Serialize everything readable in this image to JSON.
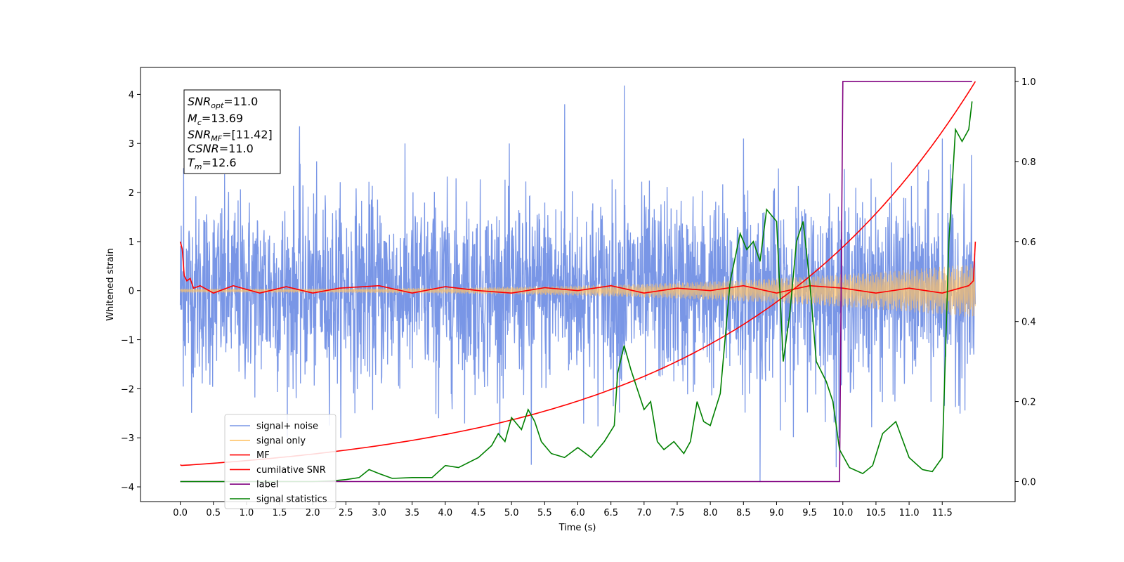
{
  "chart_data": {
    "type": "line",
    "xlabel": "Time (s)",
    "ylabel": "Whitened strain",
    "xlim": [
      -0.6,
      12.6
    ],
    "ylim": [
      -4.3,
      4.55
    ],
    "y2lim": [
      -0.05,
      1.035
    ],
    "xticks": [
      0.0,
      0.5,
      1.0,
      1.5,
      2.0,
      2.5,
      3.0,
      3.5,
      4.0,
      4.5,
      5.0,
      5.5,
      6.0,
      6.5,
      7.0,
      7.5,
      8.0,
      8.5,
      9.0,
      9.5,
      10.0,
      10.5,
      11.0,
      11.5
    ],
    "xtick_labels": [
      "0.0",
      "0.5",
      "1.0",
      "1.5",
      "2.0",
      "2.5",
      "3.0",
      "3.5",
      "4.0",
      "4.5",
      "5.0",
      "5.5",
      "6.0",
      "6.5",
      "7.0",
      "7.5",
      "8.0",
      "8.5",
      "9.0",
      "9.5",
      "10.0",
      "10.5",
      "11.0",
      "11.5"
    ],
    "yticks": [
      -4,
      -3,
      -2,
      -1,
      0,
      1,
      2,
      3,
      4
    ],
    "ytick_labels": [
      "−4",
      "−3",
      "−2",
      "−1",
      "0",
      "1",
      "2",
      "3",
      "4"
    ],
    "y2ticks": [
      0.0,
      0.2,
      0.4,
      0.6,
      0.8,
      1.0
    ],
    "y2tick_labels": [
      "0.0",
      "0.2",
      "0.4",
      "0.6",
      "0.8",
      "1.0"
    ],
    "info_box": {
      "line1": {
        "sym": "SNR",
        "sub": "opt",
        "val": "=11.0"
      },
      "line2": {
        "sym": "M",
        "sub": "c",
        "val": "=13.69"
      },
      "line3": {
        "sym": "SNR",
        "sub": "MF",
        "val": "=[11.42]"
      },
      "line4": {
        "sym": "CSNR",
        "sub": "",
        "val": "=11.0"
      },
      "line5": {
        "sym": "T",
        "sub": "m",
        "val": "=12.6"
      }
    },
    "legend": {
      "placement": "lower-left",
      "entries": [
        {
          "label": "signal+ noise",
          "color": "#7996e6"
        },
        {
          "label": "signal only",
          "color": "#ffc266"
        },
        {
          "label": "MF",
          "color": "#ff0000"
        },
        {
          "label": "cumilative SNR",
          "color": "#ff0000"
        },
        {
          "label": "label",
          "color": "#800080"
        },
        {
          "label": "signal statistics",
          "color": "#008000"
        }
      ]
    },
    "series": [
      {
        "name": "signal+ noise",
        "axis": "left",
        "color": "#7996e6",
        "style": "noise",
        "x_range": [
          0.0,
          12.0
        ],
        "std": 0.95,
        "spikes": [
          {
            "x": 0.05,
            "y": 2.5
          },
          {
            "x": 1.8,
            "y": 3.35
          },
          {
            "x": 3.9,
            "y": -2.6
          },
          {
            "x": 5.3,
            "y": -3.55
          },
          {
            "x": 5.8,
            "y": 3.8
          },
          {
            "x": 6.7,
            "y": 4.18
          },
          {
            "x": 8.75,
            "y": -3.9
          },
          {
            "x": 8.5,
            "y": 3.1
          },
          {
            "x": 9.9,
            "y": -3.6
          },
          {
            "x": 11.5,
            "y": 3.1
          }
        ]
      },
      {
        "name": "signal only",
        "axis": "left",
        "color": "#ffc266",
        "style": "chirp",
        "x_range": [
          0.0,
          12.0
        ],
        "amplitude_start": 0.04,
        "amplitude_end": 0.55
      },
      {
        "name": "MF",
        "axis": "left",
        "color": "#ff0000",
        "points": [
          [
            0.0,
            1.0
          ],
          [
            0.03,
            0.85
          ],
          [
            0.06,
            0.3
          ],
          [
            0.1,
            0.2
          ],
          [
            0.15,
            0.25
          ],
          [
            0.2,
            0.05
          ],
          [
            0.3,
            0.1
          ],
          [
            0.5,
            -0.05
          ],
          [
            0.8,
            0.1
          ],
          [
            1.2,
            -0.05
          ],
          [
            1.6,
            0.08
          ],
          [
            2.0,
            -0.05
          ],
          [
            2.4,
            0.05
          ],
          [
            3.0,
            0.1
          ],
          [
            3.5,
            -0.05
          ],
          [
            4.0,
            0.08
          ],
          [
            4.5,
            0.0
          ],
          [
            5.0,
            -0.05
          ],
          [
            5.5,
            0.06
          ],
          [
            6.0,
            0.0
          ],
          [
            6.5,
            0.1
          ],
          [
            7.0,
            -0.05
          ],
          [
            7.5,
            0.05
          ],
          [
            8.0,
            0.0
          ],
          [
            8.5,
            0.1
          ],
          [
            9.0,
            -0.05
          ],
          [
            9.5,
            0.1
          ],
          [
            10.0,
            0.05
          ],
          [
            10.5,
            -0.05
          ],
          [
            11.0,
            0.05
          ],
          [
            11.5,
            -0.05
          ],
          [
            11.9,
            0.1
          ],
          [
            11.97,
            0.2
          ],
          [
            12.0,
            1.0
          ]
        ]
      },
      {
        "name": "cumilative SNR",
        "axis": "right",
        "color": "#ff0000",
        "style": "exp",
        "x_range": [
          0.0,
          12.0
        ],
        "y_start": 0.04,
        "y_end": 1.0,
        "start_dip": -0.75
      },
      {
        "name": "label",
        "axis": "right",
        "color": "#800080",
        "points": [
          [
            0.0,
            0.0
          ],
          [
            9.95,
            0.0
          ],
          [
            10.0,
            1.0
          ],
          [
            11.95,
            1.0
          ]
        ]
      },
      {
        "name": "signal statistics",
        "axis": "right",
        "color": "#008000",
        "points": [
          [
            0.0,
            0.0
          ],
          [
            0.5,
            0.0
          ],
          [
            1.0,
            0.0
          ],
          [
            1.5,
            0.0
          ],
          [
            2.0,
            0.0
          ],
          [
            2.3,
            0.002
          ],
          [
            2.5,
            0.005
          ],
          [
            2.7,
            0.01
          ],
          [
            2.85,
            0.03
          ],
          [
            3.0,
            0.02
          ],
          [
            3.2,
            0.008
          ],
          [
            3.5,
            0.01
          ],
          [
            3.8,
            0.01
          ],
          [
            4.0,
            0.04
          ],
          [
            4.2,
            0.035
          ],
          [
            4.5,
            0.06
          ],
          [
            4.7,
            0.09
          ],
          [
            4.8,
            0.12
          ],
          [
            4.9,
            0.1
          ],
          [
            5.0,
            0.16
          ],
          [
            5.15,
            0.13
          ],
          [
            5.25,
            0.18
          ],
          [
            5.35,
            0.15
          ],
          [
            5.45,
            0.1
          ],
          [
            5.6,
            0.07
          ],
          [
            5.8,
            0.06
          ],
          [
            6.0,
            0.085
          ],
          [
            6.2,
            0.06
          ],
          [
            6.4,
            0.1
          ],
          [
            6.55,
            0.14
          ],
          [
            6.6,
            0.27
          ],
          [
            6.7,
            0.34
          ],
          [
            6.8,
            0.28
          ],
          [
            6.9,
            0.23
          ],
          [
            7.0,
            0.18
          ],
          [
            7.1,
            0.2
          ],
          [
            7.2,
            0.1
          ],
          [
            7.3,
            0.08
          ],
          [
            7.45,
            0.1
          ],
          [
            7.6,
            0.07
          ],
          [
            7.7,
            0.1
          ],
          [
            7.8,
            0.2
          ],
          [
            7.9,
            0.15
          ],
          [
            8.0,
            0.14
          ],
          [
            8.15,
            0.22
          ],
          [
            8.3,
            0.5
          ],
          [
            8.45,
            0.62
          ],
          [
            8.55,
            0.58
          ],
          [
            8.65,
            0.6
          ],
          [
            8.75,
            0.55
          ],
          [
            8.85,
            0.68
          ],
          [
            9.0,
            0.65
          ],
          [
            9.1,
            0.3
          ],
          [
            9.2,
            0.42
          ],
          [
            9.3,
            0.6
          ],
          [
            9.4,
            0.65
          ],
          [
            9.5,
            0.5
          ],
          [
            9.6,
            0.3
          ],
          [
            9.75,
            0.25
          ],
          [
            9.85,
            0.2
          ],
          [
            9.95,
            0.08
          ],
          [
            10.1,
            0.035
          ],
          [
            10.3,
            0.02
          ],
          [
            10.45,
            0.04
          ],
          [
            10.6,
            0.12
          ],
          [
            10.8,
            0.15
          ],
          [
            11.0,
            0.06
          ],
          [
            11.2,
            0.03
          ],
          [
            11.35,
            0.025
          ],
          [
            11.5,
            0.06
          ],
          [
            11.6,
            0.6
          ],
          [
            11.7,
            0.88
          ],
          [
            11.8,
            0.85
          ],
          [
            11.9,
            0.88
          ],
          [
            11.95,
            0.95
          ]
        ]
      }
    ]
  }
}
